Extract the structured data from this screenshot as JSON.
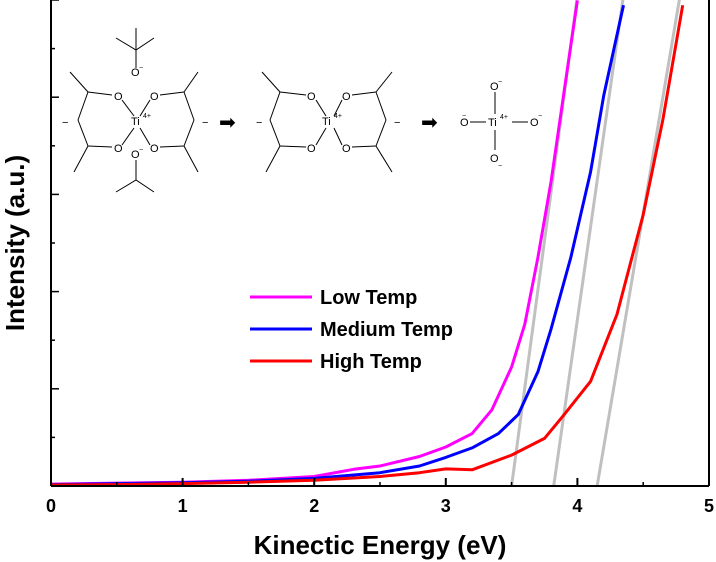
{
  "chart_data": {
    "type": "line",
    "title": "",
    "xlabel": "Kinectic Energy (eV)",
    "ylabel": "Intensity (a.u.)",
    "xlim": [
      0,
      5
    ],
    "ylim": [
      0,
      1
    ],
    "x_ticks": [
      "0",
      "1",
      "2",
      "3",
      "4",
      "5"
    ],
    "legend_position": "center-right",
    "series": [
      {
        "name": "Low Temp",
        "color": "#ff00ff",
        "x": [
          0,
          0.5,
          1.0,
          1.5,
          2.0,
          2.3,
          2.5,
          2.8,
          3.0,
          3.2,
          3.35,
          3.5,
          3.6,
          3.7,
          3.8,
          3.9,
          4.0
        ],
        "y": [
          0.004,
          0.006,
          0.008,
          0.012,
          0.02,
          0.035,
          0.042,
          0.062,
          0.082,
          0.11,
          0.16,
          0.25,
          0.34,
          0.48,
          0.64,
          0.83,
          1.02
        ]
      },
      {
        "name": "Medium Temp",
        "color": "#0000ff",
        "x": [
          0,
          0.5,
          1.0,
          1.5,
          2.0,
          2.5,
          2.8,
          3.0,
          3.2,
          3.4,
          3.55,
          3.7,
          3.8,
          3.95,
          4.1,
          4.2,
          4.35
        ],
        "y": [
          0.003,
          0.005,
          0.007,
          0.01,
          0.016,
          0.028,
          0.042,
          0.06,
          0.08,
          0.11,
          0.15,
          0.24,
          0.33,
          0.48,
          0.66,
          0.82,
          1.01
        ]
      },
      {
        "name": "High Temp",
        "color": "#ff0000",
        "x": [
          0,
          0.5,
          1.0,
          1.5,
          2.0,
          2.5,
          2.8,
          3.0,
          3.2,
          3.5,
          3.75,
          3.9,
          4.1,
          4.3,
          4.5,
          4.65,
          4.8
        ],
        "y": [
          0.002,
          0.003,
          0.005,
          0.008,
          0.012,
          0.02,
          0.028,
          0.036,
          0.034,
          0.065,
          0.1,
          0.15,
          0.22,
          0.36,
          0.57,
          0.77,
          1.01
        ]
      }
    ],
    "fit_lines": [
      {
        "color": "#c0c0c0",
        "x": [
          3.5,
          4.0
        ],
        "y": [
          0.0,
          1.03
        ]
      },
      {
        "color": "#c0c0c0",
        "x": [
          3.82,
          4.35
        ],
        "y": [
          0.0,
          1.03
        ]
      },
      {
        "color": "#c0c0c0",
        "x": [
          4.15,
          4.78
        ],
        "y": [
          0.0,
          1.03
        ]
      }
    ]
  },
  "inset": {
    "ti_label": "Ti",
    "ti_charge": "4+",
    "o_label": "O",
    "o_minus": "−",
    "arrow_glyph": "➡"
  }
}
